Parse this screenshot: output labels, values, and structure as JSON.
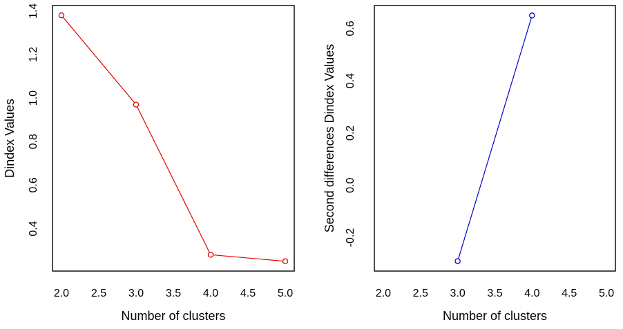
{
  "figure": {
    "background_color": "#ffffff",
    "frame_color": "#000000",
    "panel_count": 2
  },
  "chart_data": [
    {
      "id": "dindex-values-plot",
      "type": "line",
      "title": "",
      "xlabel": "Number of clusters",
      "ylabel": "Dindex Values",
      "x": [
        2,
        3,
        4,
        5
      ],
      "y": [
        1.38,
        0.97,
        0.28,
        0.25
      ],
      "x_tick_labels": [
        "2.0",
        "2.5",
        "3.0",
        "3.5",
        "4.0",
        "4.5",
        "5.0"
      ],
      "x_tick_values": [
        2.0,
        2.5,
        3.0,
        3.5,
        4.0,
        4.5,
        5.0
      ],
      "y_tick_labels": [
        "0.4",
        "0.6",
        "0.8",
        "1.0",
        "1.2",
        "1.4"
      ],
      "y_tick_values": [
        0.4,
        0.6,
        0.8,
        1.0,
        1.2,
        1.4
      ],
      "xlim": [
        1.88,
        5.12
      ],
      "ylim": [
        0.205,
        1.425
      ],
      "line_color": "#e60000",
      "marker": "open-circle",
      "grid": false,
      "legend_position": "none"
    },
    {
      "id": "second-differences-plot",
      "type": "line",
      "title": "",
      "xlabel": "Number of clusters",
      "ylabel": "Second differences Dindex Values",
      "x": [
        3,
        4
      ],
      "y": [
        -0.29,
        0.65
      ],
      "x_tick_labels": [
        "2.0",
        "2.5",
        "3.0",
        "3.5",
        "4.0",
        "4.5",
        "5.0"
      ],
      "x_tick_values": [
        2.0,
        2.5,
        3.0,
        3.5,
        4.0,
        4.5,
        5.0
      ],
      "y_tick_labels": [
        "-0.2",
        "0.0",
        "0.2",
        "0.4",
        "0.6"
      ],
      "y_tick_values": [
        -0.2,
        0.0,
        0.2,
        0.4,
        0.6
      ],
      "xlim": [
        1.88,
        5.12
      ],
      "ylim": [
        -0.328,
        0.688
      ],
      "line_color": "#0000cd",
      "marker": "open-circle",
      "grid": false,
      "legend_position": "none"
    }
  ]
}
